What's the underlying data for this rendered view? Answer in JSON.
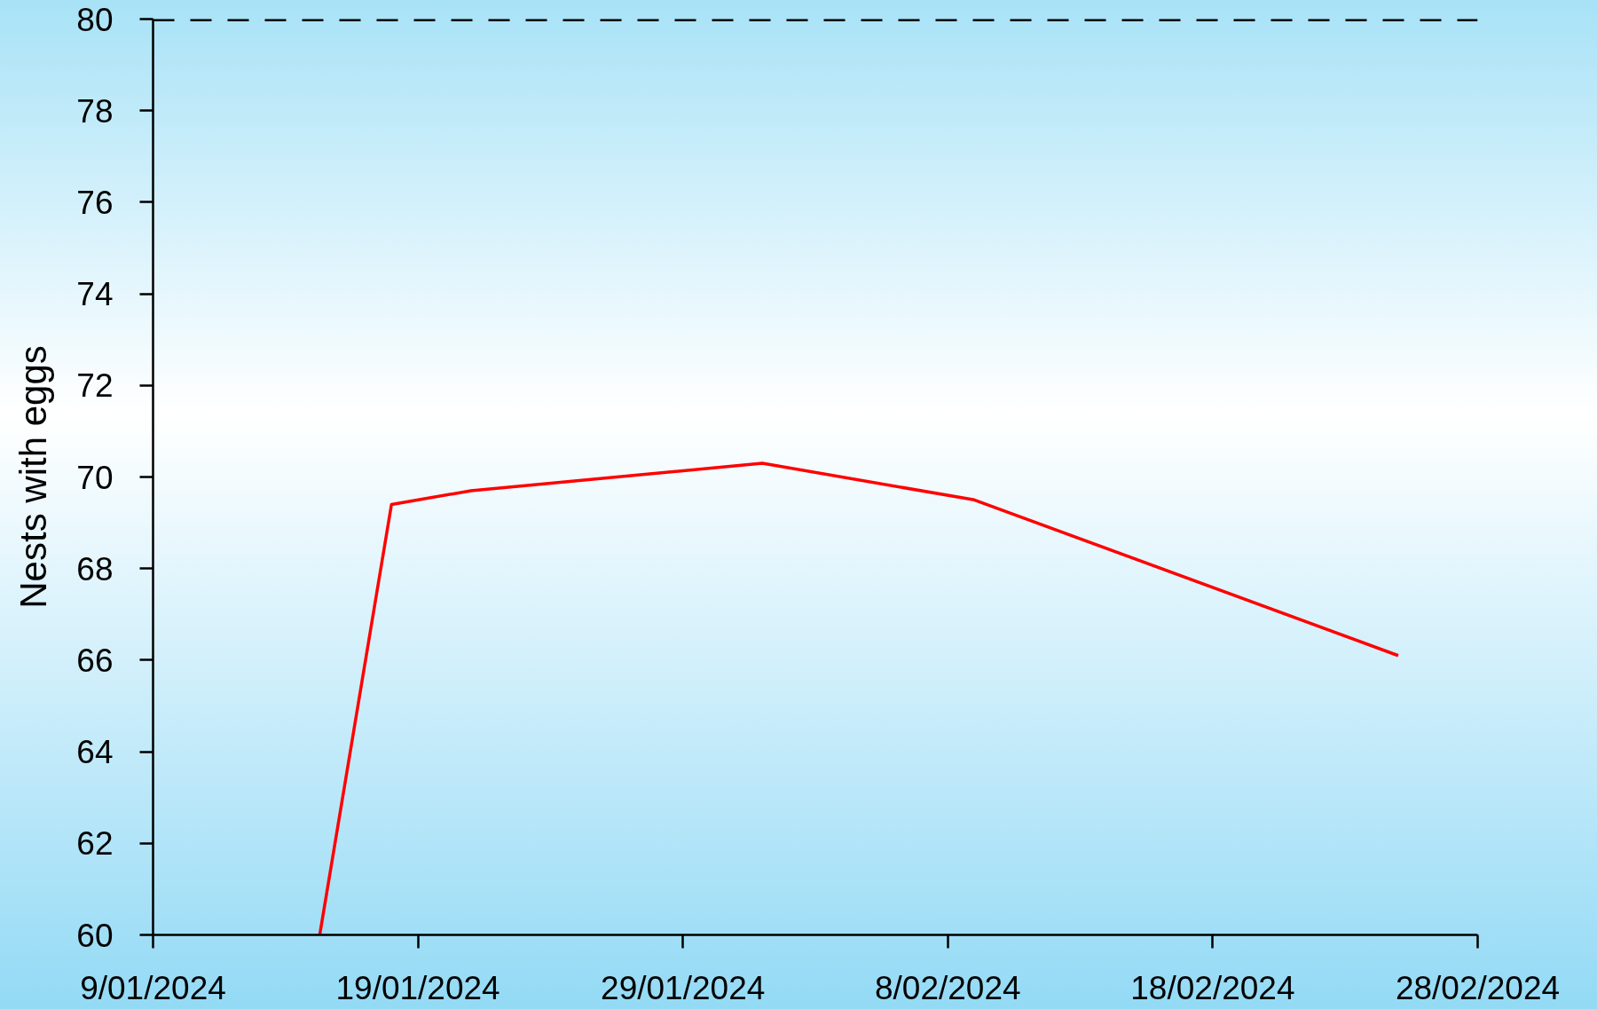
{
  "chart_data": {
    "type": "line",
    "ylabel": "Nests with eggs",
    "x": [
      "2024-01-15T07:00",
      "2024-01-18",
      "2024-01-21",
      "2024-02-01",
      "2024-02-09",
      "2024-02-25"
    ],
    "series": [
      {
        "color": "#ff0000",
        "values": [
          60,
          69.4,
          69.7,
          70.3,
          69.5,
          66.1
        ]
      }
    ],
    "xlim": [
      "2024-01-09",
      "2024-02-28"
    ],
    "xticks": [
      {
        "value": "2024-01-09",
        "label": "9/01/2024"
      },
      {
        "value": "2024-01-19",
        "label": "19/01/2024"
      },
      {
        "value": "2024-01-29",
        "label": "29/01/2024"
      },
      {
        "value": "2024-02-08",
        "label": "8/02/2024"
      },
      {
        "value": "2024-02-18",
        "label": "18/02/2024"
      },
      {
        "value": "2024-02-28",
        "label": "28/02/2024"
      }
    ],
    "ylim": [
      60,
      80
    ],
    "yticks": [
      60,
      62,
      64,
      66,
      68,
      70,
      72,
      74,
      76,
      78,
      80
    ],
    "ref_lines": [
      {
        "axis": "y",
        "value": 80,
        "color": "#000000",
        "line_style": "dashed"
      }
    ],
    "grid": false,
    "line_style": "solid"
  }
}
